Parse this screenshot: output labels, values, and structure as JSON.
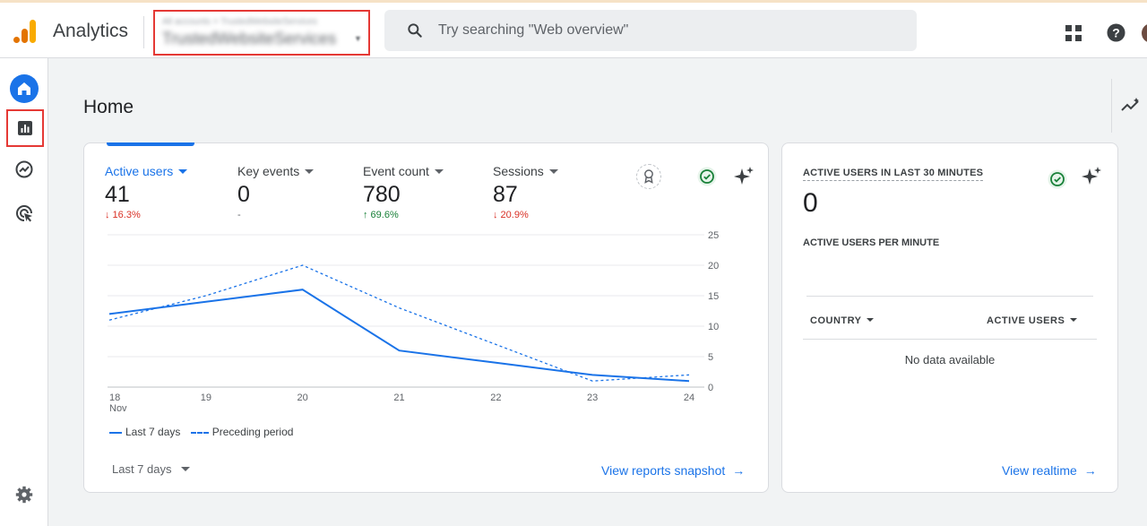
{
  "header": {
    "app_title": "Analytics",
    "account_line1": "All accounts > TrustedWebsiteServices",
    "account_line2": "TrustedWebsiteServices",
    "search_placeholder": "Try searching \"Web overview\"",
    "brand_colors": {
      "orange": "#f9ab00",
      "dark_orange": "#e37400"
    }
  },
  "sidebar": {
    "items": [
      {
        "name": "home",
        "icon": "home-icon",
        "active": true
      },
      {
        "name": "reports",
        "icon": "bar-chart-icon",
        "highlighted": true
      },
      {
        "name": "explore",
        "icon": "explore-icon"
      },
      {
        "name": "advertising",
        "icon": "advertising-icon"
      },
      {
        "name": "admin",
        "icon": "gear-icon"
      }
    ]
  },
  "page": {
    "title": "Home"
  },
  "metrics": [
    {
      "label": "Active users",
      "value": "41",
      "change": "↓ 16.3%",
      "trend": "down"
    },
    {
      "label": "Key events",
      "value": "0",
      "change": "-",
      "trend": "flat"
    },
    {
      "label": "Event count",
      "value": "780",
      "change": "↑ 69.6%",
      "trend": "up"
    },
    {
      "label": "Sessions",
      "value": "87",
      "change": "↓ 20.9%",
      "trend": "down"
    }
  ],
  "chart_data": {
    "type": "line",
    "categories": [
      "18\nNov",
      "19",
      "20",
      "21",
      "22",
      "23",
      "24"
    ],
    "tick_labels": [
      "18",
      "19",
      "20",
      "21",
      "22",
      "23",
      "24"
    ],
    "month_label": "Nov",
    "series": [
      {
        "name": "Last 7 days",
        "values": [
          12,
          14,
          16,
          6,
          4,
          2,
          1
        ],
        "style": "solid"
      },
      {
        "name": "Preceding period",
        "values": [
          11,
          15,
          20,
          13,
          7,
          1,
          2
        ],
        "style": "dashed"
      }
    ],
    "y_ticks": [
      "0",
      "5",
      "10",
      "15",
      "20",
      "25"
    ],
    "ylim": [
      0,
      25
    ],
    "grid": true,
    "legend": "bottom-left",
    "color": "#1a73e8"
  },
  "legend": {
    "current": "Last 7 days",
    "previous": "Preceding period"
  },
  "footer_main": {
    "date_range": "Last 7 days",
    "view_link": "View reports snapshot"
  },
  "realtime": {
    "title": "ACTIVE USERS IN LAST 30 MINUTES",
    "value": "0",
    "per_minute": "ACTIVE USERS PER MINUTE",
    "col_country": "COUNTRY",
    "col_users": "ACTIVE USERS",
    "empty": "No data available",
    "view_link": "View realtime"
  }
}
